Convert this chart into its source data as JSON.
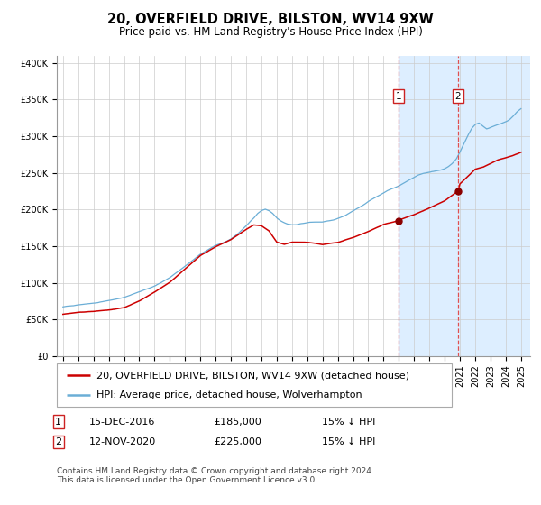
{
  "title": "20, OVERFIELD DRIVE, BILSTON, WV14 9XW",
  "subtitle": "Price paid vs. HM Land Registry's House Price Index (HPI)",
  "ylabel_ticks": [
    "£0",
    "£50K",
    "£100K",
    "£150K",
    "£200K",
    "£250K",
    "£300K",
    "£350K",
    "£400K"
  ],
  "ytick_values": [
    0,
    50000,
    100000,
    150000,
    200000,
    250000,
    300000,
    350000,
    400000
  ],
  "ylim": [
    0,
    410000
  ],
  "xlim_start": 1994.6,
  "xlim_end": 2025.6,
  "transaction1_date": 2016.958,
  "transaction1_price": 185000,
  "transaction2_date": 2020.87,
  "transaction2_price": 225000,
  "shaded_region_start": 2016.958,
  "hpi_line_color": "#6baed6",
  "price_line_color": "#cc0000",
  "transaction_dot_color": "#8b0000",
  "dashed_vline_color": "#e05050",
  "shaded_color": "#ddeeff",
  "grid_color": "#cccccc",
  "legend_label_price": "20, OVERFIELD DRIVE, BILSTON, WV14 9XW (detached house)",
  "legend_label_hpi": "HPI: Average price, detached house, Wolverhampton",
  "table_row1": [
    "1",
    "15-DEC-2016",
    "£185,000",
    "15% ↓ HPI"
  ],
  "table_row2": [
    "2",
    "12-NOV-2020",
    "£225,000",
    "15% ↓ HPI"
  ],
  "footnote": "Contains HM Land Registry data © Crown copyright and database right 2024.\nThis data is licensed under the Open Government Licence v3.0.",
  "title_fontsize": 10.5,
  "subtitle_fontsize": 8.5,
  "tick_fontsize": 7,
  "legend_fontsize": 8,
  "table_fontsize": 8,
  "footnote_fontsize": 6.5,
  "hpi_key": [
    1995.0,
    1995.25,
    1995.5,
    1995.75,
    1996.0,
    1996.25,
    1996.5,
    1996.75,
    1997.0,
    1997.25,
    1997.5,
    1997.75,
    1998.0,
    1998.25,
    1998.5,
    1998.75,
    1999.0,
    1999.25,
    1999.5,
    1999.75,
    2000.0,
    2000.25,
    2000.5,
    2000.75,
    2001.0,
    2001.25,
    2001.5,
    2001.75,
    2002.0,
    2002.25,
    2002.5,
    2002.75,
    2003.0,
    2003.25,
    2003.5,
    2003.75,
    2004.0,
    2004.25,
    2004.5,
    2004.75,
    2005.0,
    2005.25,
    2005.5,
    2005.75,
    2006.0,
    2006.25,
    2006.5,
    2006.75,
    2007.0,
    2007.25,
    2007.5,
    2007.75,
    2008.0,
    2008.25,
    2008.5,
    2008.75,
    2009.0,
    2009.25,
    2009.5,
    2009.75,
    2010.0,
    2010.25,
    2010.5,
    2010.75,
    2011.0,
    2011.25,
    2011.5,
    2011.75,
    2012.0,
    2012.25,
    2012.5,
    2012.75,
    2013.0,
    2013.25,
    2013.5,
    2013.75,
    2014.0,
    2014.25,
    2014.5,
    2014.75,
    2015.0,
    2015.25,
    2015.5,
    2015.75,
    2016.0,
    2016.25,
    2016.5,
    2016.75,
    2017.0,
    2017.25,
    2017.5,
    2017.75,
    2018.0,
    2018.25,
    2018.5,
    2018.75,
    2019.0,
    2019.25,
    2019.5,
    2019.75,
    2020.0,
    2020.25,
    2020.5,
    2020.75,
    2021.0,
    2021.25,
    2021.5,
    2021.75,
    2022.0,
    2022.25,
    2022.5,
    2022.75,
    2023.0,
    2023.25,
    2023.5,
    2023.75,
    2024.0,
    2024.25,
    2024.5,
    2024.75,
    2025.0
  ],
  "hpi_val": [
    67000,
    68000,
    68500,
    69000,
    70000,
    70500,
    71000,
    71500,
    72000,
    73000,
    74000,
    75000,
    76000,
    77000,
    78000,
    79000,
    80000,
    82000,
    84000,
    86000,
    88000,
    90000,
    92000,
    94000,
    96000,
    99000,
    102000,
    105000,
    108000,
    112000,
    116000,
    120000,
    124000,
    128000,
    132000,
    136000,
    140000,
    143000,
    146000,
    149000,
    152000,
    154000,
    156000,
    158000,
    161000,
    165000,
    169000,
    174000,
    179000,
    185000,
    190000,
    196000,
    200000,
    202000,
    200000,
    196000,
    190000,
    186000,
    183000,
    181000,
    180000,
    180000,
    181000,
    182000,
    183000,
    184000,
    184000,
    184000,
    184000,
    185000,
    186000,
    187000,
    189000,
    191000,
    193000,
    196000,
    199000,
    202000,
    205000,
    208000,
    212000,
    215000,
    218000,
    221000,
    224000,
    227000,
    229000,
    231000,
    233000,
    236000,
    239000,
    242000,
    245000,
    248000,
    250000,
    251000,
    252000,
    253000,
    254000,
    255000,
    257000,
    260000,
    264000,
    270000,
    280000,
    291000,
    302000,
    312000,
    318000,
    320000,
    316000,
    312000,
    314000,
    316000,
    318000,
    320000,
    322000,
    325000,
    330000,
    336000,
    340000
  ],
  "price_key": [
    1995.0,
    1996.0,
    1997.0,
    1998.0,
    1999.0,
    2000.0,
    2001.0,
    2002.0,
    2003.0,
    2004.0,
    2005.0,
    2006.0,
    2007.0,
    2007.5,
    2008.0,
    2008.5,
    2009.0,
    2009.5,
    2010.0,
    2011.0,
    2012.0,
    2013.0,
    2014.0,
    2015.0,
    2016.0,
    2016.958,
    2017.0,
    2018.0,
    2019.0,
    2020.0,
    2020.87,
    2021.0,
    2022.0,
    2022.5,
    2023.0,
    2023.5,
    2024.0,
    2024.5,
    2025.0
  ],
  "price_val": [
    57000,
    60000,
    61000,
    63000,
    66000,
    75000,
    87000,
    100000,
    118000,
    136000,
    148000,
    158000,
    172000,
    178000,
    177000,
    170000,
    155000,
    152000,
    155000,
    155000,
    152000,
    155000,
    162000,
    170000,
    180000,
    185000,
    186000,
    193000,
    202000,
    212000,
    225000,
    235000,
    255000,
    258000,
    263000,
    268000,
    271000,
    274000,
    278000
  ]
}
